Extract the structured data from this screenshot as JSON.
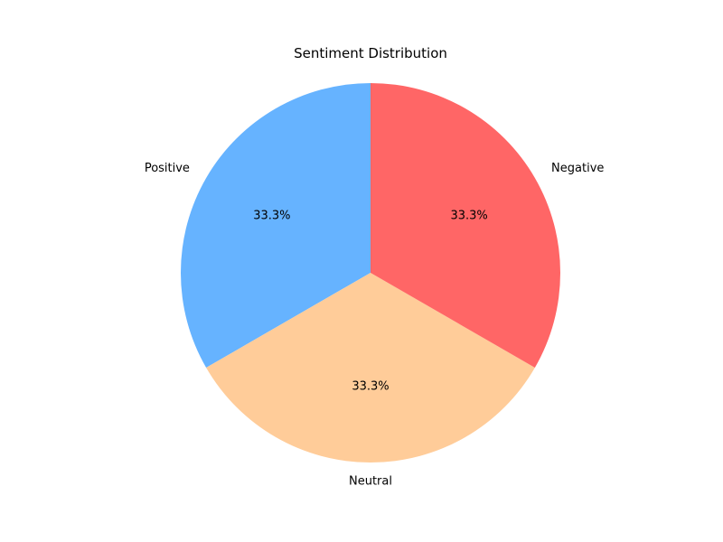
{
  "chart_data": {
    "type": "pie",
    "title": "Sentiment Distribution",
    "slices": [
      {
        "label": "Positive",
        "value": 33.3,
        "display": "33.3%",
        "color": "#66b3ff"
      },
      {
        "label": "Neutral",
        "value": 33.3,
        "display": "33.3%",
        "color": "#ffcc99"
      },
      {
        "label": "Negative",
        "value": 33.3,
        "display": "33.3%",
        "color": "#ff6666"
      }
    ],
    "start_angle_deg": 90,
    "direction": "counterclockwise"
  }
}
